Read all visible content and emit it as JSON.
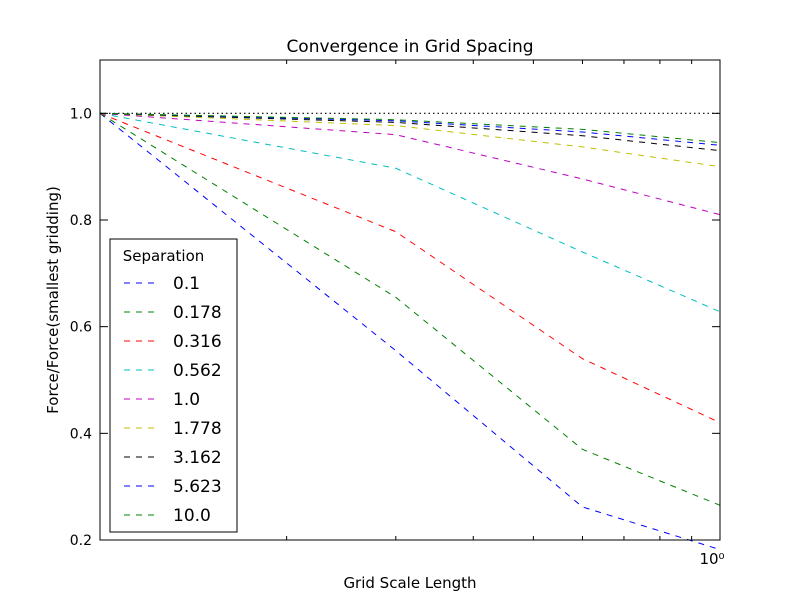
{
  "chart_data": {
    "type": "line",
    "title": "Convergence in Grid Spacing",
    "xlabel": "Grid Scale Length",
    "ylabel": "Force/Force(smallest gridding)",
    "xscale": "log",
    "xlim": [
      0.1,
      1.0
    ],
    "ylim": [
      0.2,
      1.1
    ],
    "yticks": [
      0.2,
      0.4,
      0.6,
      0.8,
      1.0
    ],
    "ytick_labels": [
      "0.2",
      "0.4",
      "0.6",
      "0.8",
      "1.0"
    ],
    "xticks_major": [
      1.0
    ],
    "xtick_major_labels": [
      "10⁰"
    ],
    "xticks_minor": [
      0.2,
      0.3,
      0.4,
      0.5,
      0.6,
      0.7,
      0.8,
      0.9
    ],
    "grid": false,
    "reference_line": {
      "y": 1.0,
      "style": "dotted",
      "color": "#000000"
    },
    "legend": {
      "title": "Separation",
      "position": "lower-left"
    },
    "x": [
      0.1,
      0.3,
      0.6,
      1.0
    ],
    "series": [
      {
        "name": "0.1",
        "color": "#0000ff",
        "values": [
          1.0,
          0.555,
          0.262,
          0.182
        ]
      },
      {
        "name": "0.178",
        "color": "#008000",
        "values": [
          1.0,
          0.655,
          0.37,
          0.265
        ]
      },
      {
        "name": "0.316",
        "color": "#ff0000",
        "values": [
          1.0,
          0.778,
          0.54,
          0.42
        ]
      },
      {
        "name": "0.562",
        "color": "#00bfbf",
        "values": [
          1.0,
          0.897,
          0.74,
          0.628
        ]
      },
      {
        "name": "1.0",
        "color": "#bf00bf",
        "values": [
          1.0,
          0.96,
          0.877,
          0.81
        ]
      },
      {
        "name": "1.778",
        "color": "#bfbf00",
        "values": [
          1.0,
          0.977,
          0.937,
          0.9
        ]
      },
      {
        "name": "3.162",
        "color": "#000000",
        "values": [
          1.0,
          0.983,
          0.958,
          0.93
        ]
      },
      {
        "name": "5.623",
        "color": "#0000ff",
        "values": [
          1.0,
          0.986,
          0.965,
          0.94
        ]
      },
      {
        "name": "10.0",
        "color": "#008000",
        "values": [
          1.0,
          0.988,
          0.97,
          0.945
        ]
      }
    ]
  }
}
